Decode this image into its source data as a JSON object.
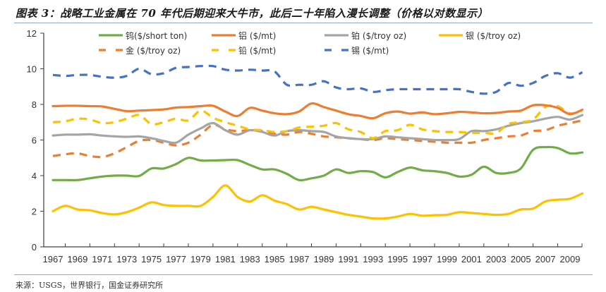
{
  "title": "图表 3：战略工业金属在 70 年代后期迎来大牛市，此后二十年陷入漫长调整（价格以对数显示）",
  "source": "来源：USGS，世界银行，国金证券研究所",
  "chart_data": {
    "type": "line",
    "title": "战略工业金属在 70 年代后期迎来大牛市，此后二十年陷入漫长调整（价格以对数显示）",
    "xlabel": "",
    "ylabel": "",
    "ylim": [
      0,
      12
    ],
    "yticks": [
      0,
      2,
      4,
      6,
      8,
      10,
      12
    ],
    "xlim": [
      1967,
      2010
    ],
    "xticks": [
      "1967",
      "1969",
      "1971",
      "1973",
      "1975",
      "1977",
      "1979",
      "1981",
      "1983",
      "1985",
      "1987",
      "1989",
      "1991",
      "1993",
      "1995",
      "1997",
      "1999",
      "2001",
      "2003",
      "2005",
      "2007",
      "2009"
    ],
    "grid": false,
    "legend": "top",
    "x": [
      1967,
      1968,
      1969,
      1970,
      1971,
      1972,
      1973,
      1974,
      1975,
      1976,
      1977,
      1978,
      1979,
      1980,
      1981,
      1982,
      1983,
      1984,
      1985,
      1986,
      1987,
      1988,
      1989,
      1990,
      1991,
      1992,
      1993,
      1994,
      1995,
      1996,
      1997,
      1998,
      1999,
      2000,
      2001,
      2002,
      2003,
      2004,
      2005,
      2006,
      2007,
      2008,
      2009,
      2010
    ],
    "series": [
      {
        "name": "钨($/short ton)",
        "color": "#70ad47",
        "dash": false,
        "values": [
          3.75,
          3.75,
          3.75,
          3.85,
          3.95,
          4.0,
          4.0,
          3.98,
          4.4,
          4.4,
          4.65,
          5.0,
          4.85,
          4.85,
          4.87,
          4.87,
          4.6,
          4.35,
          4.35,
          4.1,
          3.75,
          3.85,
          4.0,
          4.35,
          4.15,
          4.25,
          4.2,
          3.9,
          4.2,
          4.45,
          4.3,
          4.25,
          4.15,
          3.95,
          4.05,
          4.5,
          4.15,
          4.15,
          4.4,
          5.45,
          5.6,
          5.55,
          5.25,
          5.3
        ]
      },
      {
        "name": "铝 ($/mt)",
        "color": "#ed7d31",
        "dash": false,
        "values": [
          7.9,
          7.92,
          7.92,
          7.9,
          7.88,
          7.75,
          7.62,
          7.65,
          7.68,
          7.72,
          7.82,
          7.85,
          7.9,
          7.92,
          7.6,
          7.35,
          7.8,
          7.65,
          7.5,
          7.45,
          7.6,
          8.05,
          7.85,
          7.65,
          7.45,
          7.35,
          7.22,
          7.5,
          7.6,
          7.48,
          7.55,
          7.45,
          7.5,
          7.58,
          7.55,
          7.5,
          7.52,
          7.6,
          7.65,
          7.95,
          7.95,
          7.8,
          7.45,
          7.7
        ]
      },
      {
        "name": "铂 ($/troy oz)",
        "color": "#a5a5a5",
        "dash": false,
        "values": [
          6.25,
          6.3,
          6.3,
          6.32,
          6.25,
          6.2,
          6.18,
          6.2,
          6.1,
          5.95,
          5.85,
          6.3,
          6.65,
          6.95,
          6.55,
          6.3,
          6.55,
          6.45,
          6.25,
          6.5,
          6.55,
          6.5,
          6.45,
          6.2,
          6.1,
          6.05,
          6.05,
          6.2,
          6.15,
          6.1,
          6.05,
          6.0,
          6.0,
          6.05,
          6.5,
          6.5,
          6.6,
          6.8,
          6.95,
          7.05,
          7.2,
          7.3,
          7.15,
          7.4
        ]
      },
      {
        "name": "银 ($/troy oz)",
        "color": "#ffc000",
        "dash": false,
        "values": [
          2.0,
          2.3,
          2.1,
          2.05,
          1.9,
          1.82,
          1.95,
          2.2,
          2.5,
          2.35,
          2.3,
          2.3,
          2.3,
          2.8,
          3.45,
          2.8,
          2.55,
          2.9,
          2.6,
          2.4,
          2.1,
          2.25,
          2.1,
          1.95,
          1.8,
          1.7,
          1.6,
          1.6,
          1.7,
          1.85,
          1.75,
          1.78,
          1.8,
          1.95,
          1.9,
          1.85,
          1.8,
          1.85,
          2.1,
          2.15,
          2.55,
          2.65,
          2.7,
          3.0
        ]
      },
      {
        "name": "金 ($/troy oz)",
        "color": "#ed7d31",
        "dash": true,
        "values": [
          5.1,
          5.2,
          5.25,
          5.1,
          5.05,
          5.25,
          5.6,
          5.95,
          6.0,
          5.85,
          5.7,
          5.85,
          6.3,
          6.85,
          6.6,
          6.5,
          6.55,
          6.5,
          6.35,
          6.3,
          6.45,
          6.35,
          6.2,
          6.15,
          6.1,
          6.05,
          6.0,
          6.1,
          6.05,
          6.0,
          5.95,
          5.9,
          5.85,
          5.85,
          5.85,
          6.0,
          6.1,
          6.2,
          6.25,
          6.5,
          6.55,
          6.8,
          6.95,
          7.1
        ]
      },
      {
        "name": "铅 ($/mt)",
        "color": "#ffc000",
        "dash": true,
        "values": [
          7.0,
          7.05,
          7.2,
          7.15,
          6.95,
          7.0,
          7.2,
          7.4,
          6.9,
          7.0,
          7.2,
          7.1,
          7.65,
          7.25,
          7.0,
          6.8,
          6.6,
          6.55,
          6.45,
          6.5,
          6.7,
          6.75,
          6.8,
          6.95,
          6.6,
          6.45,
          6.1,
          6.5,
          6.55,
          6.85,
          6.6,
          6.5,
          6.45,
          6.45,
          6.4,
          6.4,
          6.4,
          6.9,
          7.0,
          7.15,
          7.85,
          7.9,
          7.5,
          7.65
        ]
      },
      {
        "name": "锡 ($/mt)",
        "color": "#4472c4",
        "dash": true,
        "values": [
          9.65,
          9.6,
          9.65,
          9.65,
          9.55,
          9.5,
          9.6,
          10.0,
          9.7,
          9.75,
          10.05,
          10.1,
          10.15,
          10.15,
          9.95,
          9.9,
          9.95,
          9.9,
          9.85,
          9.1,
          9.1,
          9.1,
          9.3,
          8.95,
          8.85,
          8.9,
          8.7,
          8.8,
          8.85,
          8.85,
          8.85,
          8.85,
          8.85,
          8.85,
          8.7,
          8.6,
          8.7,
          9.2,
          9.05,
          9.2,
          9.6,
          9.75,
          9.5,
          9.8
        ]
      }
    ]
  },
  "legend": [
    {
      "label": "钨($/short ton)",
      "color": "#70ad47",
      "dash": false
    },
    {
      "label": "铝 ($/mt)",
      "color": "#ed7d31",
      "dash": false
    },
    {
      "label": "铂 ($/troy oz)",
      "color": "#a5a5a5",
      "dash": false
    },
    {
      "label": "银 ($/troy oz)",
      "color": "#ffc000",
      "dash": false
    },
    {
      "label": "金 ($/troy oz)",
      "color": "#ed7d31",
      "dash": true
    },
    {
      "label": "铅 ($/mt)",
      "color": "#ffc000",
      "dash": true
    },
    {
      "label": "锡 ($/mt)",
      "color": "#4472c4",
      "dash": true
    }
  ]
}
